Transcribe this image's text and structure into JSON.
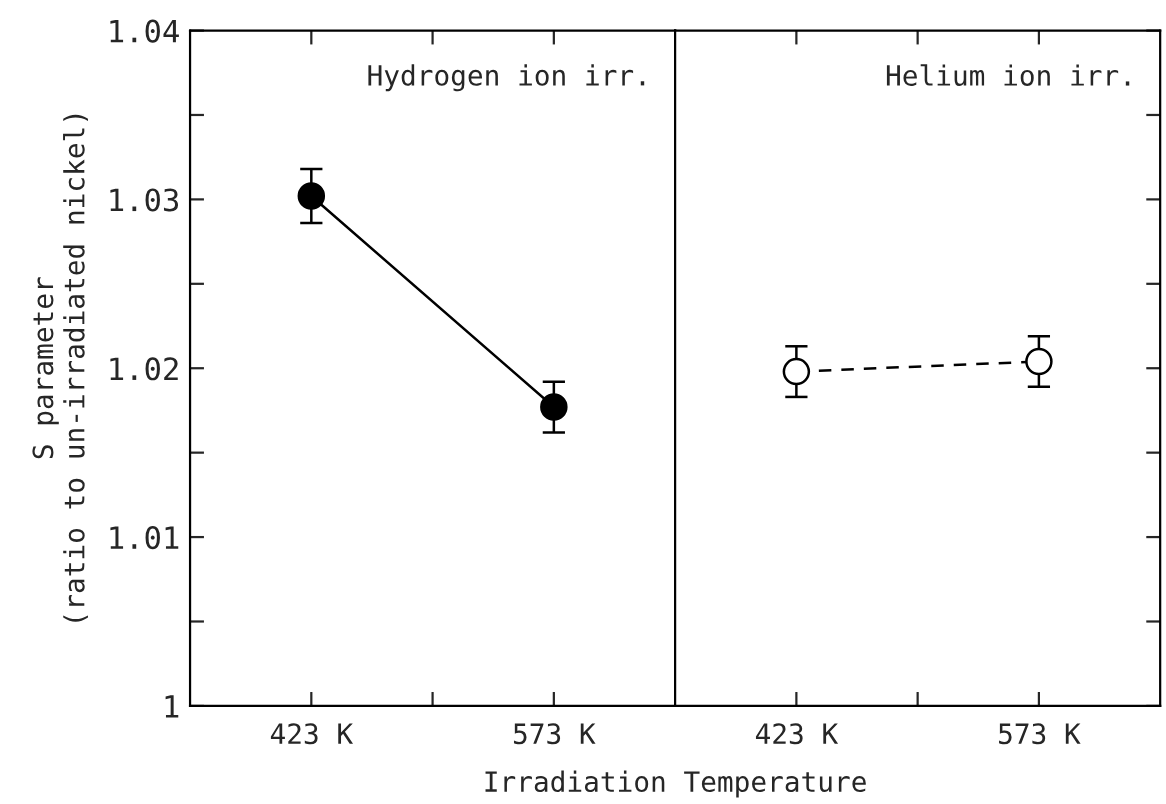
{
  "chart_data": [
    {
      "type": "line",
      "categories": [
        "423 K",
        "573 K"
      ],
      "ylabel": "S parameter\n(ratio to un-irradiated nickel)",
      "xlabel": "Irradiation Temperature",
      "annotations": [
        "Hydrogen ion irr."
      ],
      "ylim": [
        1,
        1.04
      ],
      "yticks": [
        1,
        {
          "value": 1.005,
          "label": null
        },
        1.01,
        {
          "value": 1.015,
          "label": null
        },
        1.02,
        {
          "value": 1.025,
          "label": null
        },
        1.03,
        {
          "value": 1.035,
          "label": null
        },
        1.04
      ],
      "marker": "circle",
      "line_style": "solid",
      "grid": false,
      "series": [
        {
          "color": "#000000",
          "values": [
            1.0302,
            1.0177
          ],
          "errors": [
            0.0016,
            0.0015
          ]
        }
      ]
    },
    {
      "type": "line",
      "categories": [
        "423 K",
        "573 K"
      ],
      "annotations": [
        "Helium ion irr."
      ],
      "ylim": [
        1,
        1.04
      ],
      "yticks": [
        1,
        {
          "value": 1.005,
          "label": null
        },
        1.01,
        {
          "value": 1.015,
          "label": null
        },
        1.02,
        {
          "value": 1.025,
          "label": null
        },
        1.03,
        {
          "value": 1.035,
          "label": null
        },
        1.04
      ],
      "marker": "circle",
      "line_style": "dashed",
      "grid": false,
      "tick_labels": "x",
      "series": [
        {
          "color": "#000000",
          "values": [
            1.0198,
            1.0204
          ],
          "errors": [
            0.0015,
            0.0015
          ]
        }
      ]
    }
  ]
}
